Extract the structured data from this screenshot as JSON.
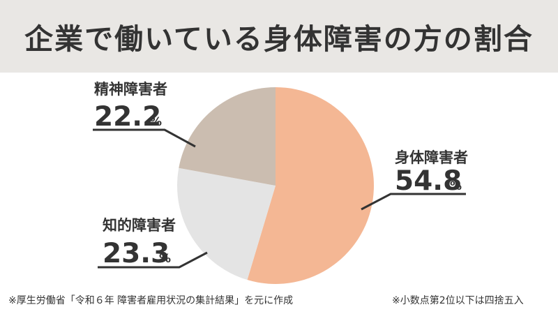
{
  "title": "企業で働いている身体障害の方の割合",
  "chart_data": {
    "type": "pie",
    "unit": "%",
    "slices": [
      {
        "label": "身体障害者",
        "value": 54.8,
        "value_text": "54.8",
        "color": "#f4b794"
      },
      {
        "label": "知的障害者",
        "value": 23.3,
        "value_text": "23.3",
        "color": "#e4e4e4"
      },
      {
        "label": "精神障害者",
        "value": 22.2,
        "value_text": "22.2",
        "color": "#cbbdb0"
      }
    ]
  },
  "footnotes": {
    "source": "※厚生労働省「令和６年 障害者雇用状況の集計結果」を元に作成",
    "rounding": "※小数点第2位以下は四捨五入"
  }
}
